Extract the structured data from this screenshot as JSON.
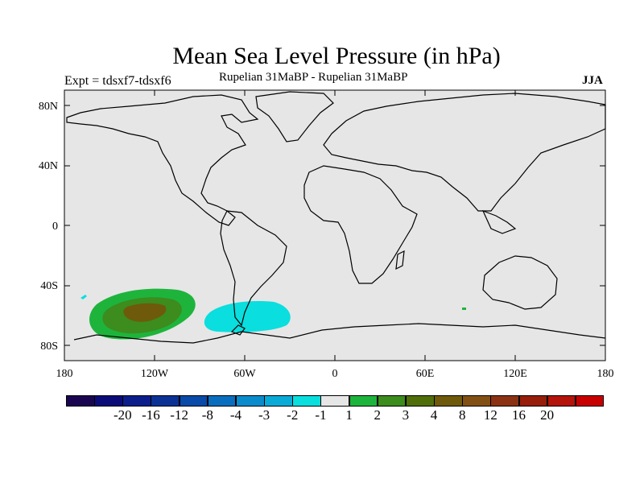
{
  "title": "Mean Sea Level Pressure (in hPa)",
  "experiment": "Expt = tdsxf7-tdsxf6",
  "period": "Rupelian  31MaBP - Rupelian  31MaBP",
  "season": "JJA",
  "y_ticks": [
    "80N",
    "40N",
    "0",
    "40S",
    "80S"
  ],
  "x_ticks": [
    "180",
    "120W",
    "60W",
    "0",
    "60E",
    "120E",
    "180"
  ],
  "colorbar": {
    "colors": [
      "#1a0650",
      "#0c0c78",
      "#0c1e8c",
      "#0c3296",
      "#0a4aa8",
      "#0a6ebe",
      "#0a8ccc",
      "#0aaad6",
      "#0adede",
      "#e6e6e6",
      "#1eb43c",
      "#3c8c1e",
      "#506e0a",
      "#6e5a0a",
      "#825014",
      "#8c3214",
      "#961e0a",
      "#b4140a",
      "#c80000"
    ],
    "labels": [
      "-20",
      "-16",
      "-12",
      "-8",
      "-4",
      "-3",
      "-2",
      "-1",
      "1",
      "2",
      "3",
      "4",
      "8",
      "12",
      "16",
      "20"
    ]
  },
  "colors": {
    "ocean": "#e6e6e6",
    "coast": "#000000"
  }
}
